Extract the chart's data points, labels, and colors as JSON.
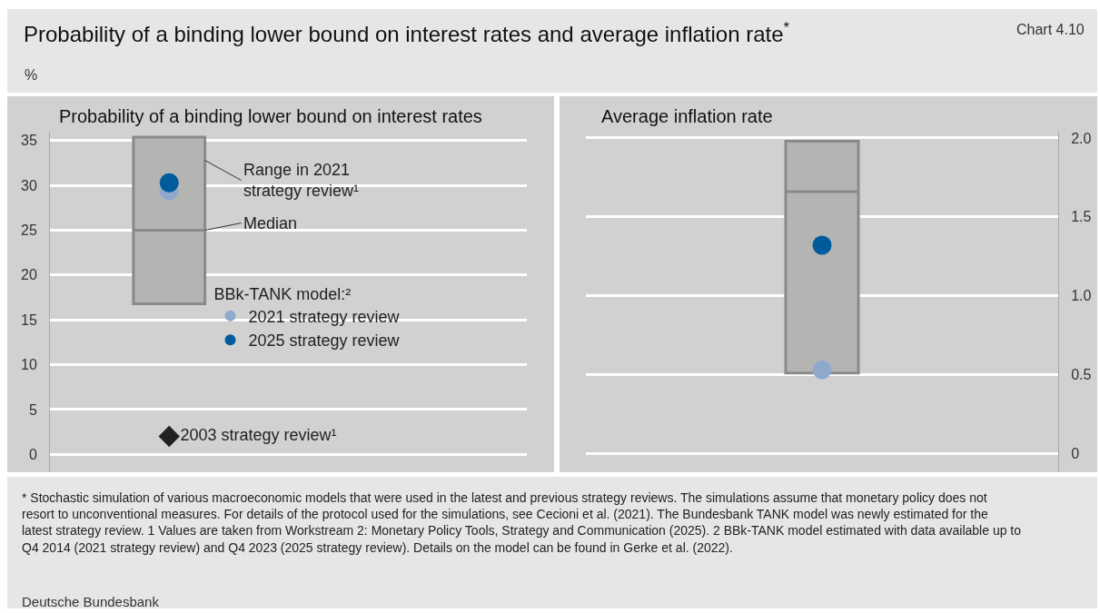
{
  "chart_data": [
    {
      "type": "scatter",
      "title": "Probability of a binding lower bound on interest rates and average inflation rate$^{*}$",
      "subtitle": "Probability of a binding lower bound on interest rates",
      "ylabel": "%",
      "categories": [
        null,
        null
      ],
      "ylim": [
        -2,
        36
      ],
      "yticks": [
        0,
        5,
        10,
        15,
        20,
        25,
        30,
        35
      ],
      "grid": "y",
      "legend": "center",
      "legend_title": "BBk-TANK model:²",
      "series": [
        {
          "type": "box",
          "color": "#b4b4b3",
          "boxes": [
            {
              "q1": 16.8,
              "median": 25.0,
              "q3": 35.4
            },
            null
          ]
        },
        {
          "name": "2021 strategy review",
          "color": "#8fa9cc",
          "marker": "circle",
          "values": [
            29.4,
            null
          ]
        },
        {
          "name": "2025 strategy review",
          "color": "#005b9d",
          "marker": "circle",
          "values": [
            30.3,
            null
          ]
        },
        {
          "name": "2003 strategy review¹",
          "color": "#222222",
          "marker": "diamond",
          "values": [
            2.0,
            null
          ]
        }
      ],
      "annotations": [
        "Range in 2021 strategy review¹",
        "Median",
        "Chart 4.10",
        "* Stochastic simulation of various macroeconomic models that were used in the latest and previous strategy reviews. The simulations assume that monetary policy does not resort to unconventional measures. For details of the protocol used for the simulations, see Cecioni et al. (2021). The Bundesbank TANK model was newly estimated for the latest strategy review. 1 Values are taken from Workstream 2: Monetary Policy Tools, Strategy and Communication (2025). 2 BBk-TANK model estimated with data available up to Q4 2014 (2021 strategy review) and Q4 2023 (2025 strategy review). Details on the model can be found in Gerke et al. (2022).",
        "Deutsche Bundesbank"
      ]
    },
    {
      "type": "scatter",
      "title": "Average inflation rate",
      "categories": [
        null
      ],
      "ylim": [
        -0.12,
        2.04
      ],
      "yticks": [
        0,
        {
          "value": 0.5,
          "label": "0.5"
        },
        {
          "value": 1.0,
          "label": "1.0"
        },
        {
          "value": 1.5,
          "label": "1.5"
        },
        {
          "value": 2.0,
          "label": "2.0"
        }
      ],
      "grid": "y",
      "series": [
        {
          "type": "box",
          "color": "#b4b4b3",
          "boxes": [
            {
              "q1": 0.51,
              "median": 1.66,
              "q3": 1.98
            }
          ]
        },
        {
          "color": "#8fa9cc",
          "marker": "circle",
          "values": [
            0.53
          ]
        },
        {
          "color": "#005b9d",
          "marker": "circle",
          "values": [
            1.32
          ]
        }
      ]
    }
  ]
}
